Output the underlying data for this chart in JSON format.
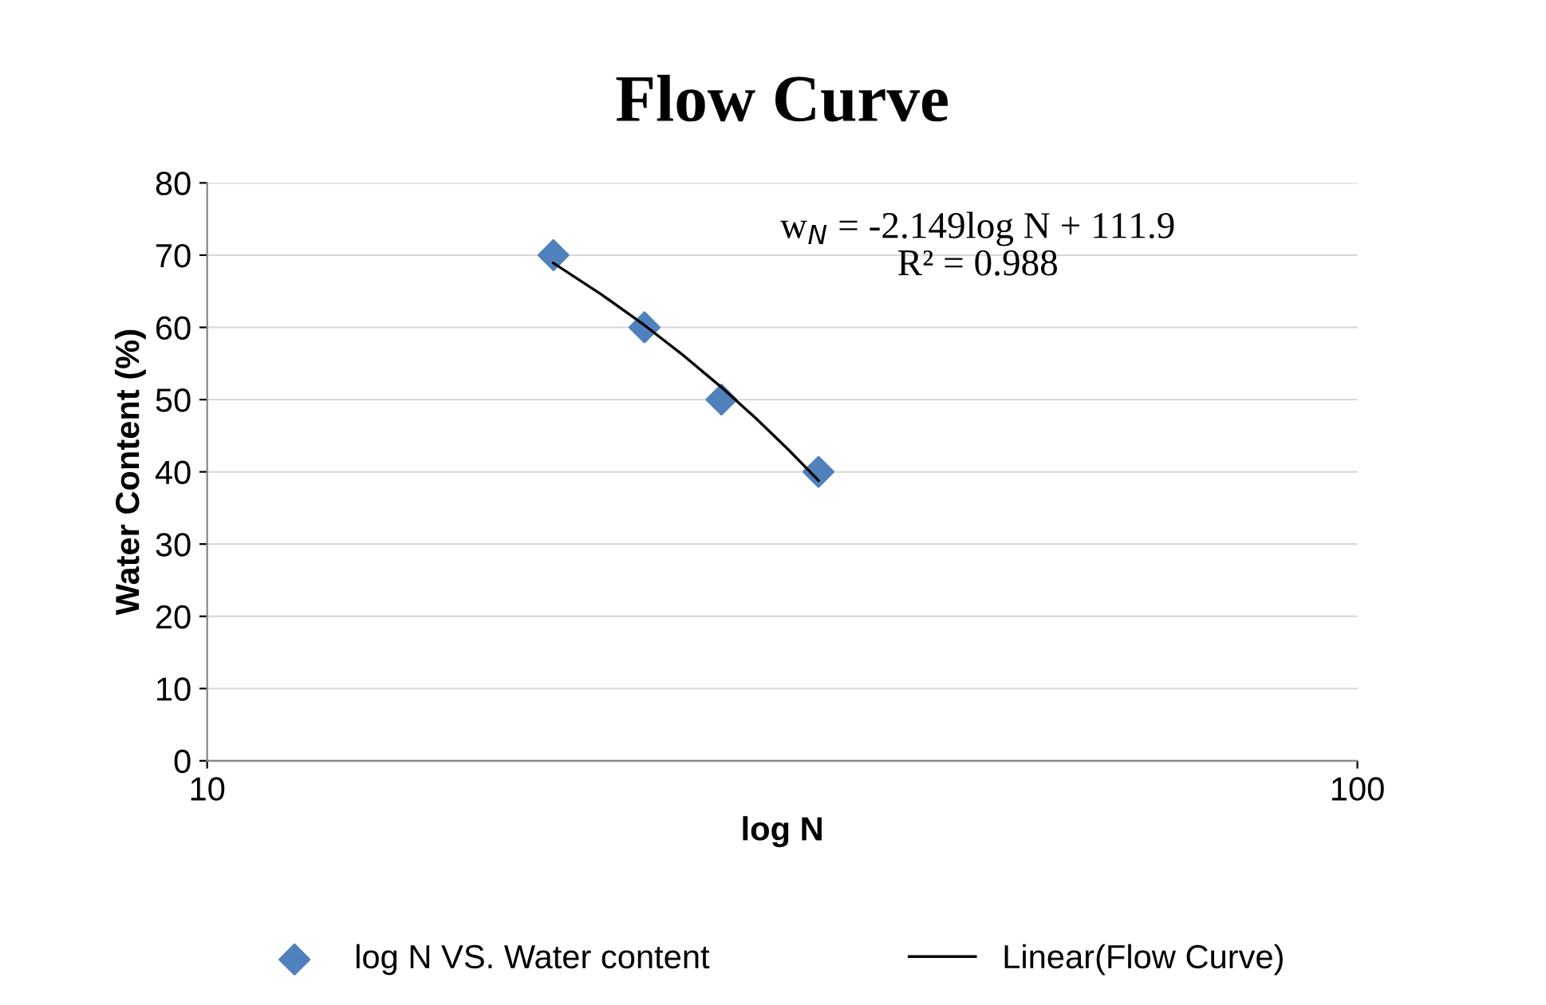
{
  "chart_data": {
    "type": "scatter",
    "title": "Flow Curve",
    "xlabel": "log N",
    "ylabel": "Water Content (%)",
    "log": "x",
    "xlim": [
      10,
      100
    ],
    "xticks": [
      10,
      100
    ],
    "ylim": [
      0,
      80
    ],
    "yticks": [
      0,
      10,
      20,
      30,
      40,
      50,
      60,
      70,
      80
    ],
    "grid": "y",
    "legend": "bottom",
    "series": [
      {
        "name": "log N VS. Water content",
        "color": "#4f81bd",
        "marker": "diamond",
        "x": [
          20,
          24,
          28,
          34
        ],
        "values": [
          70,
          60,
          50,
          40
        ]
      },
      {
        "name": "Linear(Flow Curve)",
        "type": "line",
        "color": "#000000",
        "line_style": "solid",
        "x": [
          20,
          22,
          24,
          26,
          28,
          30,
          32,
          34
        ],
        "values": [
          68.9,
          64.6,
          60.3,
          56.0,
          51.7,
          47.4,
          43.1,
          38.8
        ]
      }
    ],
    "annotations": [
      {
        "text": "w$_{N}$ = -2.149log N + 111.9\nR² = 0.988"
      }
    ]
  }
}
